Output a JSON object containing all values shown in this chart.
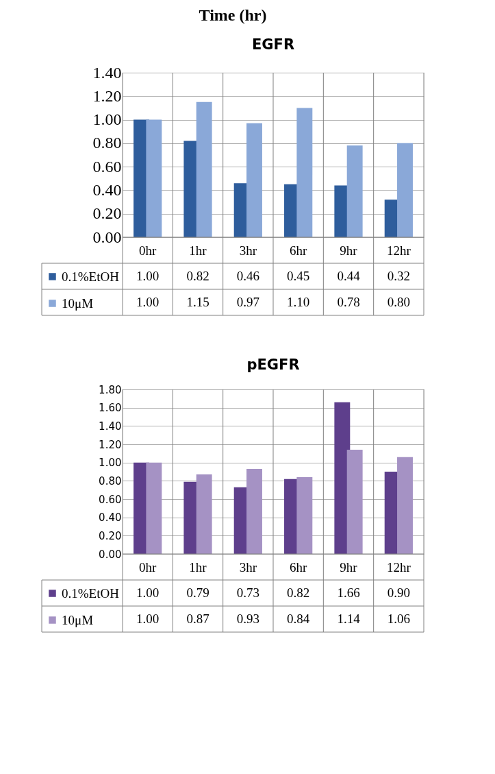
{
  "chart_data": [
    {
      "type": "bar",
      "title": "EGFR",
      "annotations": [
        "Time (hr)"
      ],
      "categories": [
        "0hr",
        "1hr",
        "3hr",
        "6hr",
        "9hr",
        "12hr"
      ],
      "series": [
        {
          "name": "0.1%EtOH",
          "color": "#2e5d9c",
          "values": [
            1.0,
            0.82,
            0.46,
            0.45,
            0.44,
            0.32
          ],
          "value_labels": [
            "1.00",
            "0.82",
            "0.46",
            "0.45",
            "0.44",
            "0.32"
          ]
        },
        {
          "name": "10μM",
          "color": "#8aa8d8",
          "values": [
            1.0,
            1.15,
            0.97,
            1.1,
            0.78,
            0.8
          ],
          "value_labels": [
            "1.00",
            "1.15",
            "0.97",
            "1.10",
            "0.78",
            "0.80"
          ]
        }
      ],
      "ylim": [
        0,
        1.4
      ],
      "yticks": [
        "0.00",
        "0.20",
        "0.40",
        "0.60",
        "0.80",
        "1.00",
        "1.20",
        "1.40"
      ],
      "grid": "y",
      "legend": "bottom left"
    },
    {
      "type": "bar",
      "title": "pEGFR",
      "categories": [
        "0hr",
        "1hr",
        "3hr",
        "6hr",
        "9hr",
        "12hr"
      ],
      "series": [
        {
          "name": "0.1%EtOH",
          "color": "#5e3f8c",
          "values": [
            1.0,
            0.79,
            0.73,
            0.82,
            1.66,
            0.9
          ],
          "value_labels": [
            "1.00",
            "0.79",
            "0.73",
            "0.82",
            "1.66",
            "0.90"
          ]
        },
        {
          "name": "10μM",
          "color": "#a592c4",
          "values": [
            1.0,
            0.87,
            0.93,
            0.84,
            1.14,
            1.06
          ],
          "value_labels": [
            "1.00",
            "0.87",
            "0.93",
            "0.84",
            "1.14",
            "1.06"
          ]
        }
      ],
      "ylim": [
        0,
        1.8
      ],
      "yticks": [
        "0.00",
        "0.20",
        "0.40",
        "0.60",
        "0.80",
        "1.00",
        "1.20",
        "1.40",
        "1.60",
        "1.80"
      ],
      "grid": "y",
      "legend": "bottom left"
    }
  ]
}
